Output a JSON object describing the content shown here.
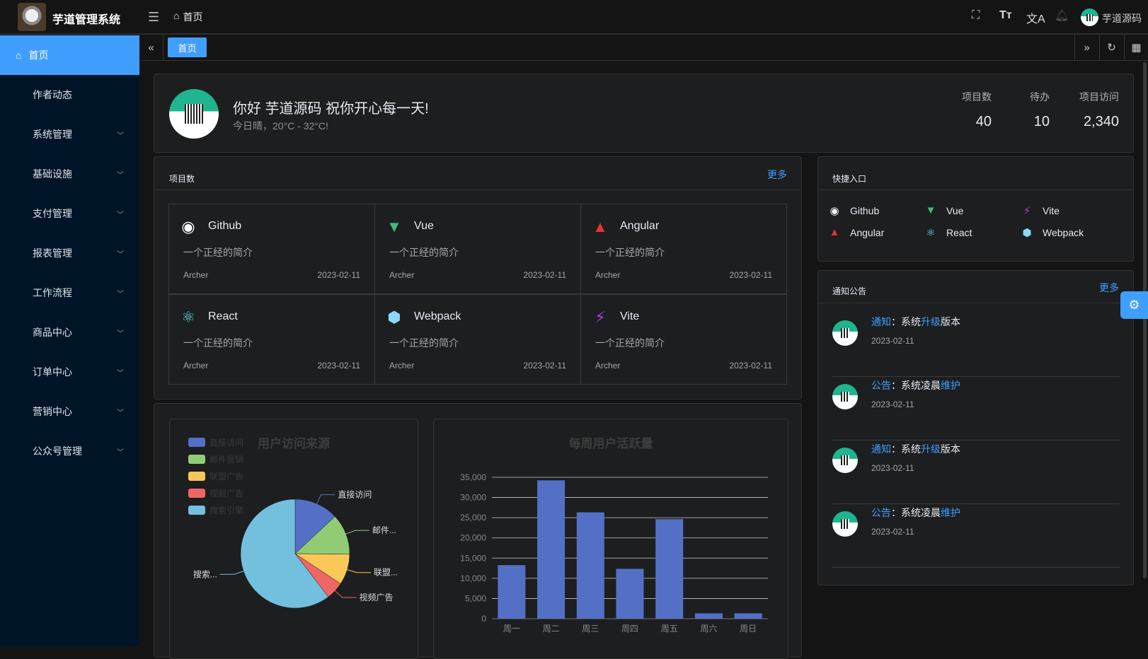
{
  "header": {
    "app_title": "芋道管理系统",
    "breadcrumb": "首页",
    "user_name": "芋道源码",
    "icons": [
      "menu-fold-icon",
      "home-icon",
      "fullscreen-icon",
      "font-size-icon",
      "translate-icon",
      "bell-icon"
    ]
  },
  "tabs": {
    "items": [
      "首页"
    ]
  },
  "sidebar": {
    "items": [
      {
        "label": "首页",
        "active": true
      },
      {
        "label": "作者动态"
      },
      {
        "label": "系统管理",
        "expandable": true
      },
      {
        "label": "基础设施",
        "expandable": true
      },
      {
        "label": "支付管理",
        "expandable": true
      },
      {
        "label": "报表管理",
        "expandable": true
      },
      {
        "label": "工作流程",
        "expandable": true
      },
      {
        "label": "商品中心",
        "expandable": true
      },
      {
        "label": "订单中心",
        "expandable": true
      },
      {
        "label": "营销中心",
        "expandable": true
      },
      {
        "label": "公众号管理",
        "expandable": true
      }
    ]
  },
  "welcome": {
    "greeting": "你好 芋道源码 祝你开心每一天!",
    "weather": "今日晴，20°C - 32°C!",
    "stats": [
      {
        "label": "项目数",
        "value": "40"
      },
      {
        "label": "待办",
        "value": "10"
      },
      {
        "label": "项目访问",
        "value": "2,340"
      }
    ]
  },
  "projects": {
    "title": "项目数",
    "more": "更多",
    "items": [
      {
        "name": "Github",
        "desc": "一个正经的简介",
        "author": "Archer",
        "date": "2023-02-11",
        "icon": "github-icon",
        "color": "#ffffff"
      },
      {
        "name": "Vue",
        "desc": "一个正经的简介",
        "author": "Archer",
        "date": "2023-02-11",
        "icon": "vue-icon",
        "color": "#42b883"
      },
      {
        "name": "Angular",
        "desc": "一个正经的简介",
        "author": "Archer",
        "date": "2023-02-11",
        "icon": "angular-icon",
        "color": "#e23237"
      },
      {
        "name": "React",
        "desc": "一个正经的简介",
        "author": "Archer",
        "date": "2023-02-11",
        "icon": "react-icon",
        "color": "#61dafb"
      },
      {
        "name": "Webpack",
        "desc": "一个正经的简介",
        "author": "Archer",
        "date": "2023-02-11",
        "icon": "webpack-icon",
        "color": "#8ed6fb"
      },
      {
        "name": "Vite",
        "desc": "一个正经的简介",
        "author": "Archer",
        "date": "2023-02-11",
        "icon": "vite-icon",
        "color": "#bd34fe"
      }
    ]
  },
  "shortcuts": {
    "title": "快捷入口",
    "items": [
      "Github",
      "Vue",
      "Vite",
      "Angular",
      "React",
      "Webpack"
    ]
  },
  "notices": {
    "title": "通知公告",
    "more": "更多",
    "items": [
      {
        "type": "通知",
        "sep": "：",
        "a": "系统",
        "b": "升级",
        "c": "版本",
        "date": "2023-02-11"
      },
      {
        "type": "公告",
        "sep": "：",
        "a": "系统凌晨",
        "b": "维护",
        "c": "",
        "date": "2023-02-11"
      },
      {
        "type": "通知",
        "sep": "：",
        "a": "系统",
        "b": "升级",
        "c": "版本",
        "date": "2023-02-11"
      },
      {
        "type": "公告",
        "sep": "：",
        "a": "系统凌晨",
        "b": "维护",
        "c": "",
        "date": "2023-02-11"
      }
    ]
  },
  "chart_data": [
    {
      "type": "pie",
      "title": "用户访问来源",
      "legend_position": "top-left",
      "categories": [
        "直接访问",
        "邮件营销",
        "联盟广告",
        "视频广告",
        "搜索引擎"
      ],
      "values": [
        335,
        310,
        234,
        135,
        1548
      ],
      "labels": [
        "直接访问",
        "邮件...",
        "联盟...",
        "视频广告",
        "搜索..."
      ],
      "colors": [
        "#5470c6",
        "#91cc75",
        "#fac858",
        "#ee6666",
        "#73c0de"
      ]
    },
    {
      "type": "bar",
      "title": "每周用户活跃量",
      "categories": [
        "周一",
        "周二",
        "周三",
        "周四",
        "周五",
        "周六",
        "周日"
      ],
      "values": [
        13253,
        34235,
        26321,
        12340,
        24643,
        1322,
        1324
      ],
      "ylim": [
        0,
        35000
      ],
      "yticks": [
        "0",
        "5,000",
        "10,000",
        "15,000",
        "20,000",
        "25,000",
        "30,000",
        "35,000"
      ],
      "grid": true,
      "color": "#5470c6"
    }
  ]
}
